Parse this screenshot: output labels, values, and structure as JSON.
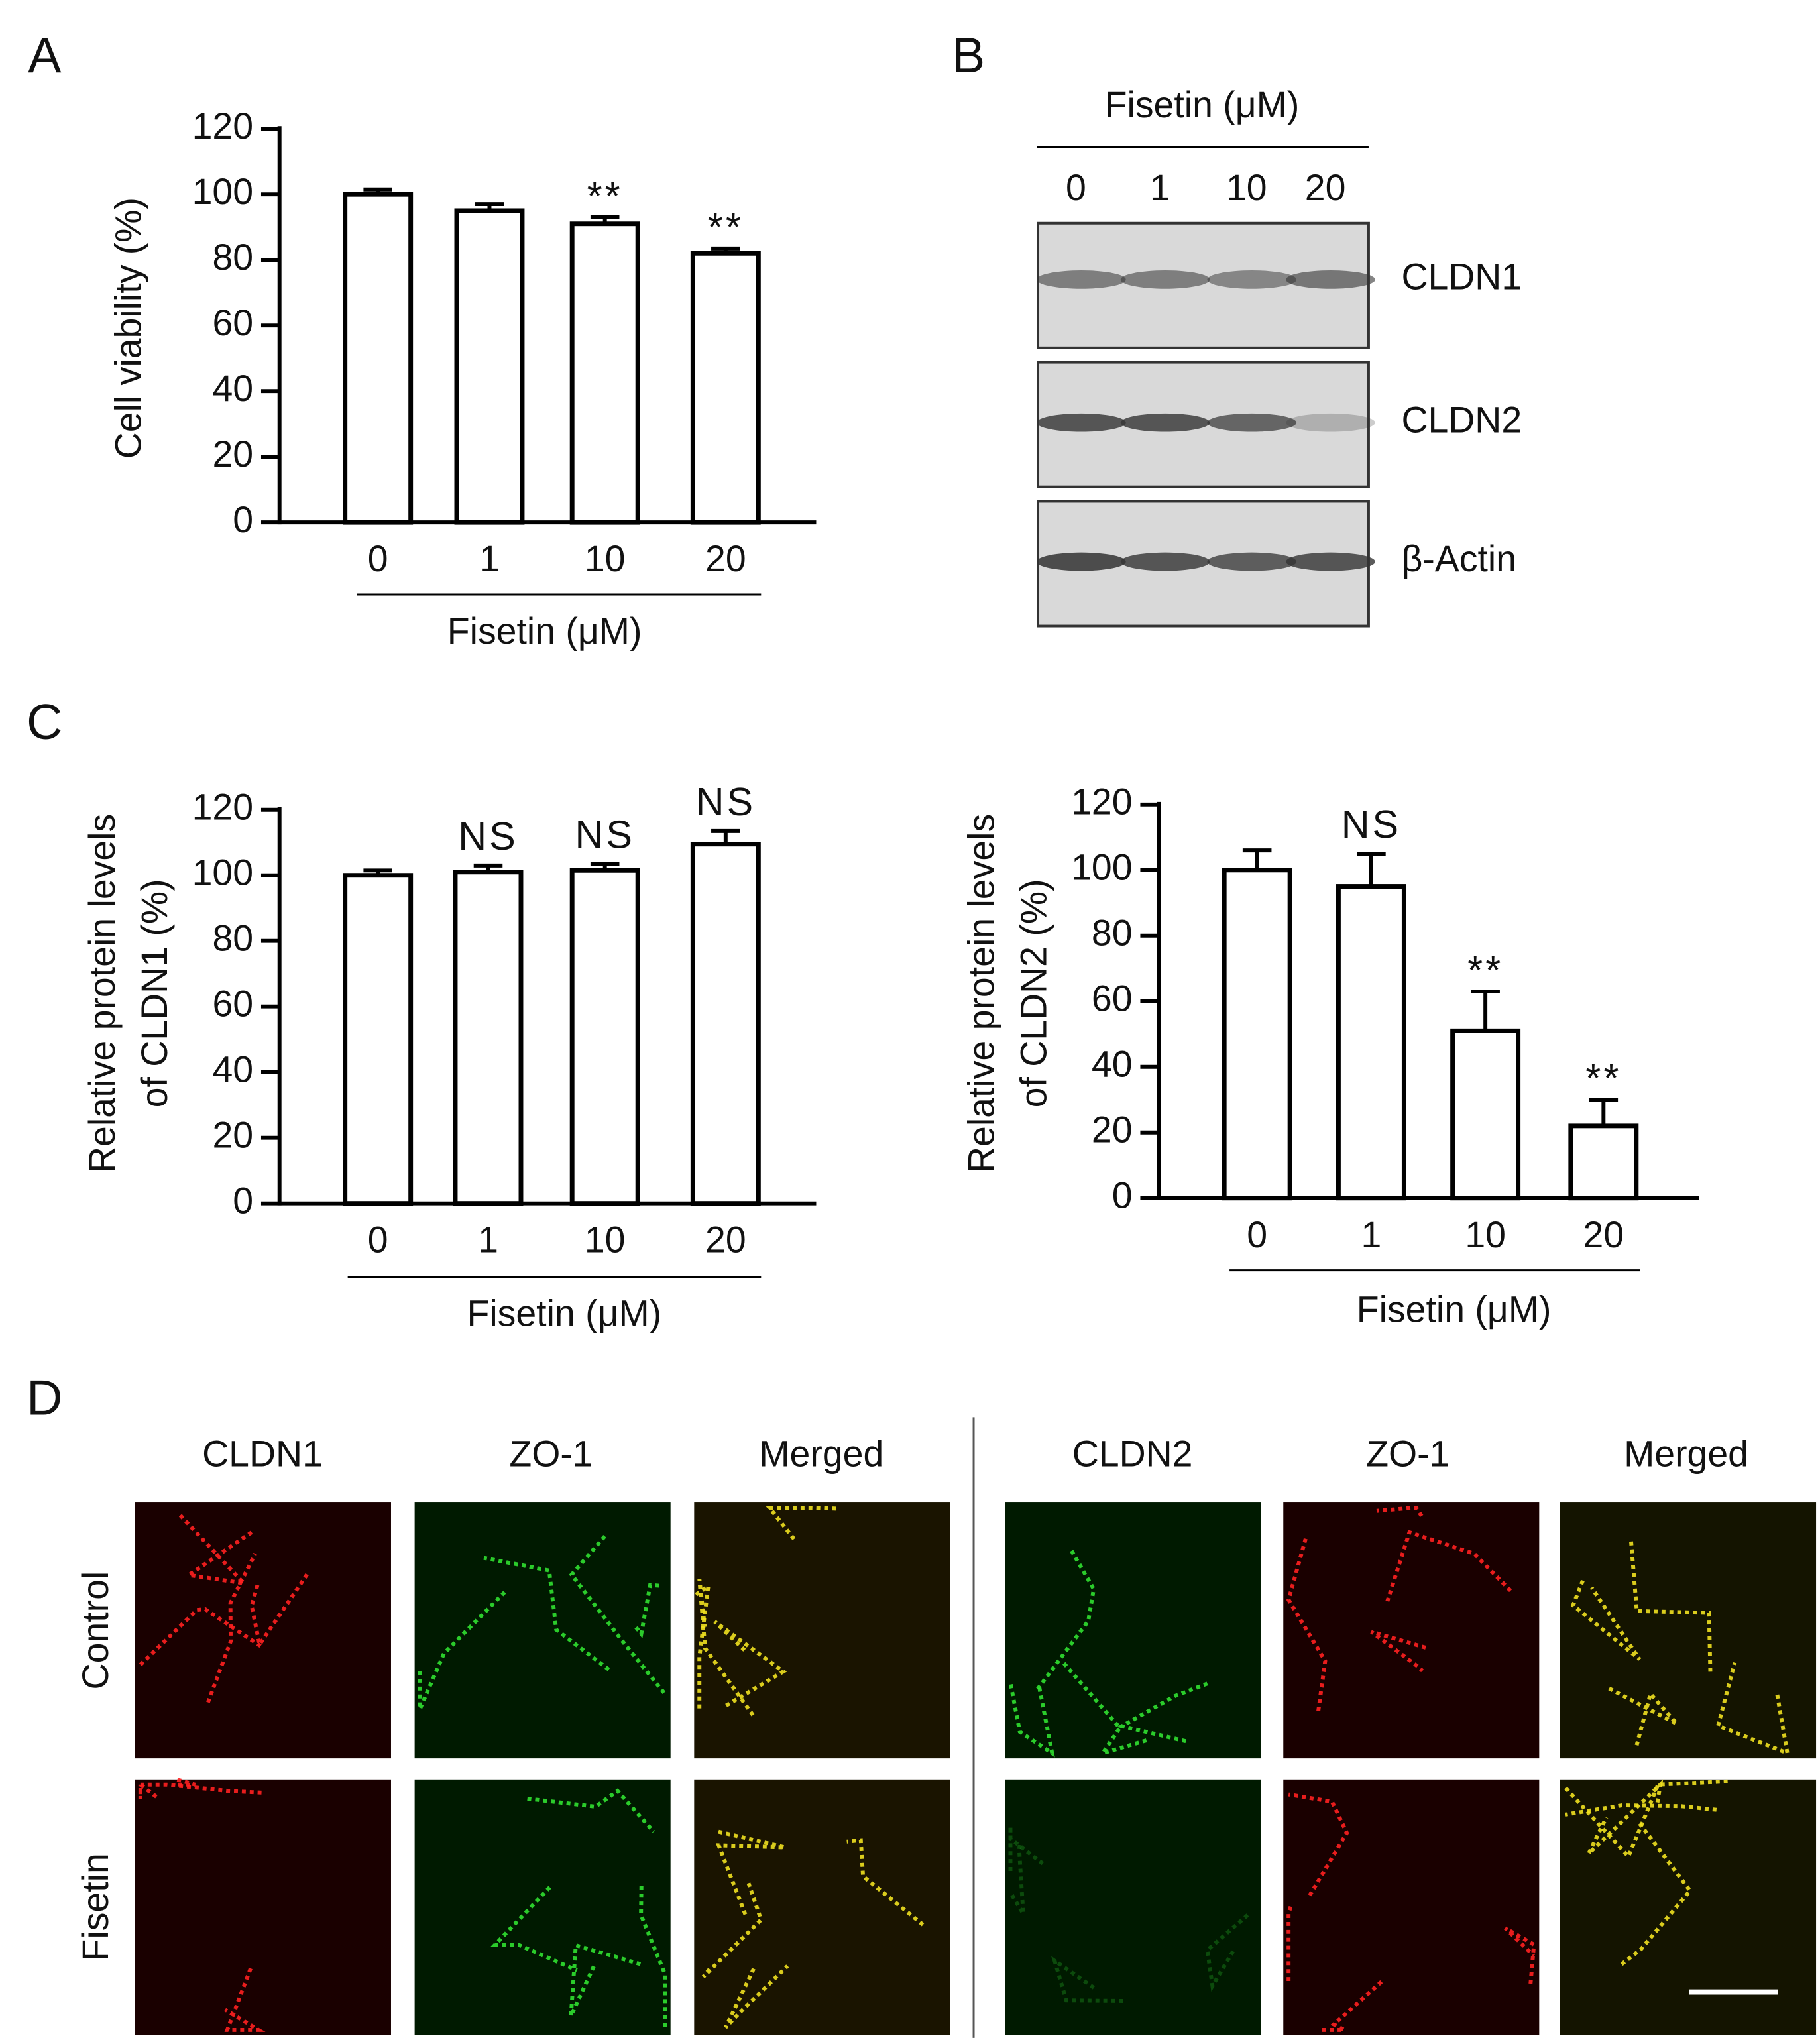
{
  "panels": [
    "A",
    "B",
    "C",
    "D"
  ],
  "chart_data": [
    {
      "type": "bar",
      "ylabel": [
        "Cell viability (%)"
      ],
      "xlabel": "Fisetin (μM)",
      "categories": [
        "0",
        "1",
        "10",
        "20"
      ],
      "values": [
        100,
        95,
        91,
        82
      ],
      "errors": [
        1.5,
        2,
        2,
        1.5
      ],
      "annotations": [
        null,
        null,
        "**",
        "**"
      ],
      "color": "#ffffff",
      "ylim": [
        0,
        120
      ],
      "yticks": [
        0,
        20,
        40,
        60,
        80,
        100,
        120
      ]
    },
    {
      "type": "bar",
      "ylabel": [
        "Relative protein levels",
        "of CLDN1 (%)"
      ],
      "xlabel": "Fisetin (μM)",
      "categories": [
        "0",
        "1",
        "10",
        "20"
      ],
      "values": [
        100,
        101,
        101.5,
        109.5
      ],
      "errors": [
        1.5,
        2,
        2,
        4
      ],
      "annotations": [
        null,
        "NS",
        "NS",
        "NS"
      ],
      "color": "#ffffff",
      "ylim": [
        0,
        120
      ],
      "yticks": [
        0,
        20,
        40,
        60,
        80,
        100,
        120
      ]
    },
    {
      "type": "bar",
      "ylabel": [
        "Relative protein levels",
        "of CLDN2 (%)"
      ],
      "xlabel": "Fisetin (μM)",
      "categories": [
        "0",
        "1",
        "10",
        "20"
      ],
      "values": [
        100,
        95,
        51,
        22
      ],
      "errors": [
        6,
        10,
        12,
        8
      ],
      "annotations": [
        null,
        "NS",
        "**",
        "**"
      ],
      "color": "#ffffff",
      "ylim": [
        0,
        120
      ],
      "yticks": [
        0,
        20,
        40,
        60,
        80,
        100,
        120
      ]
    }
  ],
  "blot": {
    "title": "Fisetin (μM)",
    "lanes": [
      "0",
      "1",
      "10",
      "20"
    ],
    "bands": [
      "CLDN1",
      "CLDN2",
      "β-Actin"
    ]
  },
  "microscopy": {
    "left_columns": [
      "CLDN1",
      "ZO-1",
      "Merged"
    ],
    "right_columns": [
      "CLDN2",
      "ZO-1",
      "Merged"
    ],
    "rows": [
      "Control",
      "Fisetin"
    ]
  }
}
